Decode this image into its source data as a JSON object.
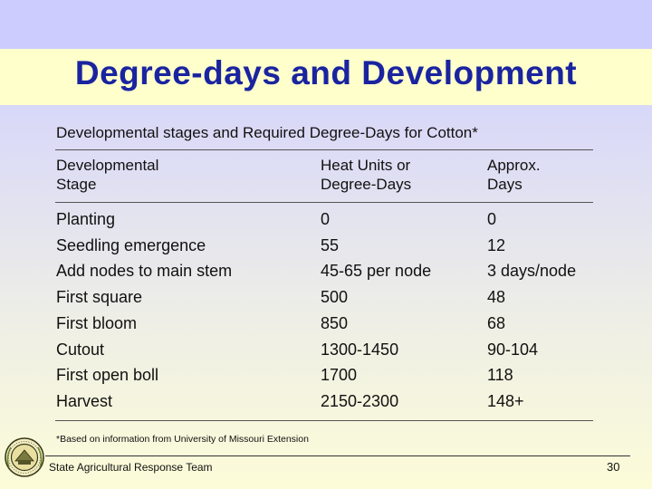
{
  "slide": {
    "title": "Degree-days and Development",
    "subtitle": "Developmental stages and Required Degree-Days for Cotton*",
    "columns": {
      "stage": [
        "Developmental",
        "Stage"
      ],
      "heat": [
        "Heat Units or",
        "Degree-Days"
      ],
      "days": [
        "Approx.",
        "Days"
      ]
    },
    "rows": [
      {
        "stage": "Planting",
        "heat": "0",
        "days": "0"
      },
      {
        "stage": "Seedling emergence",
        "heat": "55",
        "days": "12"
      },
      {
        "stage": "Add nodes to main stem",
        "heat": "45-65 per node",
        "days": "3 days/node"
      },
      {
        "stage": "First square",
        "heat": "500",
        "days": "48"
      },
      {
        "stage": "First bloom",
        "heat": "850",
        "days": "68"
      },
      {
        "stage": "Cutout",
        "heat": "1300-1450",
        "days": "90-104"
      },
      {
        "stage": "First open boll",
        "heat": "1700",
        "days": "118"
      },
      {
        "stage": "Harvest",
        "heat": "2150-2300",
        "days": "148+"
      }
    ],
    "footnote": "*Based on information from University of Missouri Extension",
    "footer": "State Agricultural Response Team",
    "page_number": "30",
    "logo_icon": "sart-seal-icon"
  }
}
